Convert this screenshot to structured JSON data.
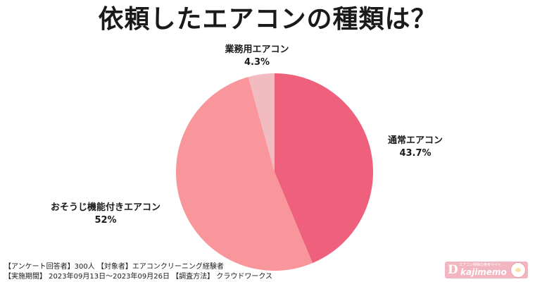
{
  "title": "依頼したエアコンの種類は？",
  "chart_data": {
    "type": "pie",
    "slices": [
      {
        "name": "通常エアコン",
        "value": 43.7,
        "label": "43.7%",
        "color": "#ee607c"
      },
      {
        "name": "おそうじ機能付きエアコン",
        "value": 52,
        "label": "52%",
        "color": "#f8969b"
      },
      {
        "name": "業務用エアコン",
        "value": 4.3,
        "label": "4.3%",
        "color": "#f2bbbf"
      }
    ],
    "start": "12 o'clock",
    "direction": "clockwise",
    "legend": "none"
  },
  "footer": {
    "line1": "【アンケート回答者】300人 【対象者】エアコンクリーニング経験者",
    "line2": "【実施期間】 2023年09月13日〜2023年09月26日 【調査方法】 クラウドワークス"
  },
  "logo": {
    "letter": "D",
    "text": "kajimemo",
    "small_text": "エアコン掃除の参考サイト"
  }
}
